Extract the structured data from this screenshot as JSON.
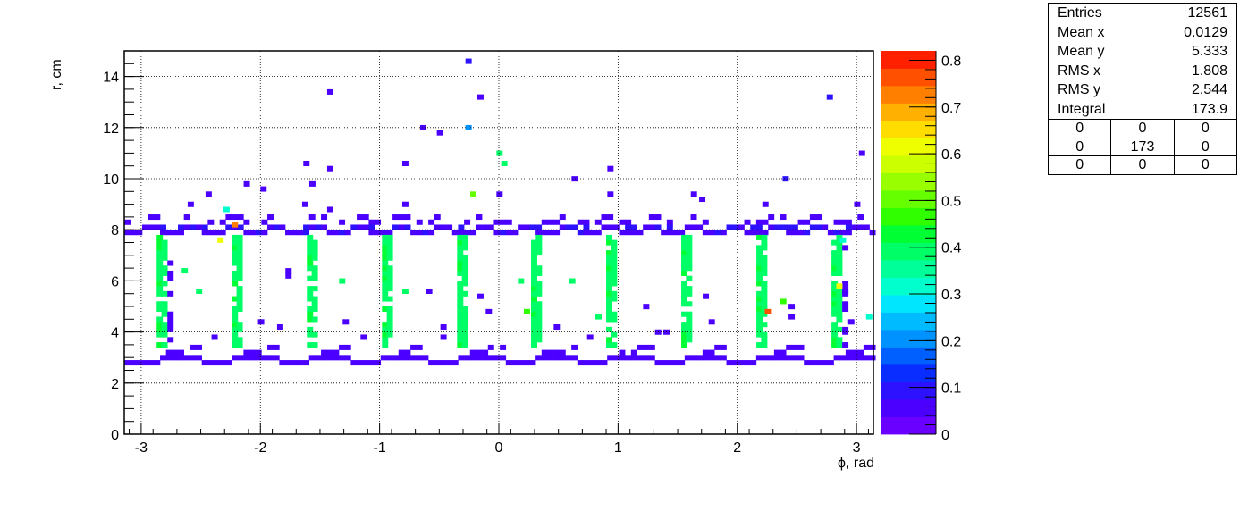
{
  "chart_data": {
    "type": "heatmap",
    "title": "",
    "xlabel": "ϕ, rad",
    "ylabel": "r, cm",
    "xlim": [
      -3.1416,
      3.1416
    ],
    "ylim": [
      0,
      15
    ],
    "x_ticks": [
      "-3",
      "-2",
      "-1",
      "0",
      "1",
      "2",
      "3"
    ],
    "y_ticks": [
      "0",
      "2",
      "4",
      "6",
      "8",
      "10",
      "12",
      "14"
    ],
    "colorbar": {
      "min": 0,
      "max": 0.82,
      "ticks": [
        "0",
        "0.1",
        "0.2",
        "0.3",
        "0.4",
        "0.5",
        "0.6",
        "0.7",
        "0.8"
      ],
      "colors": [
        "#6a00ff",
        "#4b00ff",
        "#2d12ff",
        "#0a2dff",
        "#0060ff",
        "#0093ff",
        "#00bbff",
        "#00e6ff",
        "#00ffcc",
        "#00ff99",
        "#00ff66",
        "#00ff33",
        "#30ff00",
        "#66ff00",
        "#99ff00",
        "#ccff00",
        "#eeff00",
        "#ffdd00",
        "#ffb000",
        "#ff8000",
        "#ff5000",
        "#ff2000"
      ]
    },
    "grid": true,
    "sector_centers": [
      -2.83,
      -2.2,
      -1.57,
      -0.94,
      -0.31,
      0.31,
      0.94,
      1.57,
      2.2,
      2.83
    ],
    "bands": [
      {
        "name": "outer",
        "r": [
          7.8,
          8.6
        ],
        "value": 0.05
      },
      {
        "name": "inner",
        "r": [
          2.7,
          3.6
        ],
        "value": 0.05
      }
    ],
    "points": [
      {
        "x": -0.28,
        "y": 14.5,
        "v": 0.08
      },
      {
        "x": -1.44,
        "y": 13.3,
        "v": 0.05
      },
      {
        "x": -0.18,
        "y": 13.1,
        "v": 0.05
      },
      {
        "x": 2.75,
        "y": 13.1,
        "v": 0.08
      },
      {
        "x": -0.66,
        "y": 11.9,
        "v": 0.05
      },
      {
        "x": -0.52,
        "y": 11.7,
        "v": 0.05
      },
      {
        "x": -0.28,
        "y": 11.9,
        "v": 0.22
      },
      {
        "x": -0.02,
        "y": 10.9,
        "v": 0.38
      },
      {
        "x": 0.02,
        "y": 10.5,
        "v": 0.38
      },
      {
        "x": 3.02,
        "y": 10.9,
        "v": 0.05
      },
      {
        "x": -1.64,
        "y": 10.5,
        "v": 0.05
      },
      {
        "x": -1.44,
        "y": 10.3,
        "v": 0.05
      },
      {
        "x": -0.81,
        "y": 10.5,
        "v": 0.05
      },
      {
        "x": 0.91,
        "y": 10.3,
        "v": 0.05
      },
      {
        "x": -2.14,
        "y": 9.7,
        "v": 0.05
      },
      {
        "x": 0.61,
        "y": 9.9,
        "v": 0.05
      },
      {
        "x": 2.38,
        "y": 9.9,
        "v": 0.08
      },
      {
        "x": -2.0,
        "y": 9.5,
        "v": 0.05
      },
      {
        "x": -1.59,
        "y": 9.7,
        "v": 0.05
      },
      {
        "x": -0.24,
        "y": 9.3,
        "v": 0.5
      },
      {
        "x": -0.02,
        "y": 9.3,
        "v": 0.05
      },
      {
        "x": -2.61,
        "y": 8.9,
        "v": 0.05
      },
      {
        "x": -2.46,
        "y": 9.3,
        "v": 0.05
      },
      {
        "x": -2.31,
        "y": 8.7,
        "v": 0.3
      },
      {
        "x": -2.24,
        "y": 8.1,
        "v": 0.72
      },
      {
        "x": -2.36,
        "y": 7.5,
        "v": 0.62
      },
      {
        "x": -1.44,
        "y": 8.7,
        "v": 0.05
      },
      {
        "x": -1.65,
        "y": 8.9,
        "v": 0.05
      },
      {
        "x": -0.81,
        "y": 8.9,
        "v": 0.05
      },
      {
        "x": 0.91,
        "y": 9.3,
        "v": 0.05
      },
      {
        "x": 1.61,
        "y": 9.3,
        "v": 0.05
      },
      {
        "x": 1.68,
        "y": 9.1,
        "v": 0.05
      },
      {
        "x": 2.21,
        "y": 8.9,
        "v": 0.05
      },
      {
        "x": 2.98,
        "y": 8.9,
        "v": 0.05
      },
      {
        "x": 2.86,
        "y": 7.5,
        "v": 0.3
      },
      {
        "x": -2.66,
        "y": 6.3,
        "v": 0.38
      },
      {
        "x": -1.79,
        "y": 6.3,
        "v": 0.05
      },
      {
        "x": -1.79,
        "y": 6.1,
        "v": 0.05
      },
      {
        "x": -1.34,
        "y": 5.9,
        "v": 0.38
      },
      {
        "x": -2.54,
        "y": 5.5,
        "v": 0.38
      },
      {
        "x": -0.81,
        "y": 5.5,
        "v": 0.38
      },
      {
        "x": -0.61,
        "y": 5.5,
        "v": 0.05
      },
      {
        "x": -0.18,
        "y": 5.3,
        "v": 0.05
      },
      {
        "x": -0.11,
        "y": 4.7,
        "v": 0.05
      },
      {
        "x": 0.16,
        "y": 5.9,
        "v": 0.38
      },
      {
        "x": 0.59,
        "y": 5.9,
        "v": 0.38
      },
      {
        "x": 0.81,
        "y": 4.5,
        "v": 0.38
      },
      {
        "x": 1.21,
        "y": 4.9,
        "v": 0.05
      },
      {
        "x": 1.71,
        "y": 5.3,
        "v": 0.05
      },
      {
        "x": 1.76,
        "y": 4.3,
        "v": 0.05
      },
      {
        "x": 2.23,
        "y": 4.7,
        "v": 0.78
      },
      {
        "x": 2.36,
        "y": 5.1,
        "v": 0.45
      },
      {
        "x": 2.43,
        "y": 4.9,
        "v": 0.05
      },
      {
        "x": 2.43,
        "y": 4.5,
        "v": 0.05
      },
      {
        "x": 2.83,
        "y": 5.7,
        "v": 0.6
      },
      {
        "x": 2.88,
        "y": 5.5,
        "v": 0.05
      },
      {
        "x": 2.93,
        "y": 4.3,
        "v": 0.05
      },
      {
        "x": 3.08,
        "y": 4.5,
        "v": 0.3
      },
      {
        "x": 0.21,
        "y": 4.7,
        "v": 0.45
      },
      {
        "x": -2.02,
        "y": 4.3,
        "v": 0.05
      },
      {
        "x": -1.86,
        "y": 4.1,
        "v": 0.05
      },
      {
        "x": -1.31,
        "y": 4.3,
        "v": 0.05
      },
      {
        "x": -0.49,
        "y": 4.1,
        "v": 0.05
      },
      {
        "x": 0.46,
        "y": 4.1,
        "v": 0.05
      },
      {
        "x": 1.31,
        "y": 3.9,
        "v": 0.05
      },
      {
        "x": 1.38,
        "y": 3.9,
        "v": 0.05
      },
      {
        "x": -2.41,
        "y": 3.7,
        "v": 0.05
      },
      {
        "x": -0.49,
        "y": 3.7,
        "v": 0.05
      },
      {
        "x": -1.16,
        "y": 3.7,
        "v": 0.05
      },
      {
        "x": 0.74,
        "y": 3.7,
        "v": 0.05
      },
      {
        "x": 2.88,
        "y": 3.9,
        "v": 0.05
      }
    ]
  },
  "stats_box": {
    "rows": [
      {
        "label": "Entries",
        "value": "12561"
      },
      {
        "label": "Mean x",
        "value": "0.0129"
      },
      {
        "label": "Mean y",
        "value": "5.333"
      },
      {
        "label": "RMS x",
        "value": "1.808"
      },
      {
        "label": "RMS y",
        "value": "2.544"
      },
      {
        "label": "Integral",
        "value": "173.9"
      }
    ],
    "grid": [
      [
        "0",
        "0",
        "0"
      ],
      [
        "0",
        "173",
        "0"
      ],
      [
        "0",
        "0",
        "0"
      ]
    ]
  }
}
